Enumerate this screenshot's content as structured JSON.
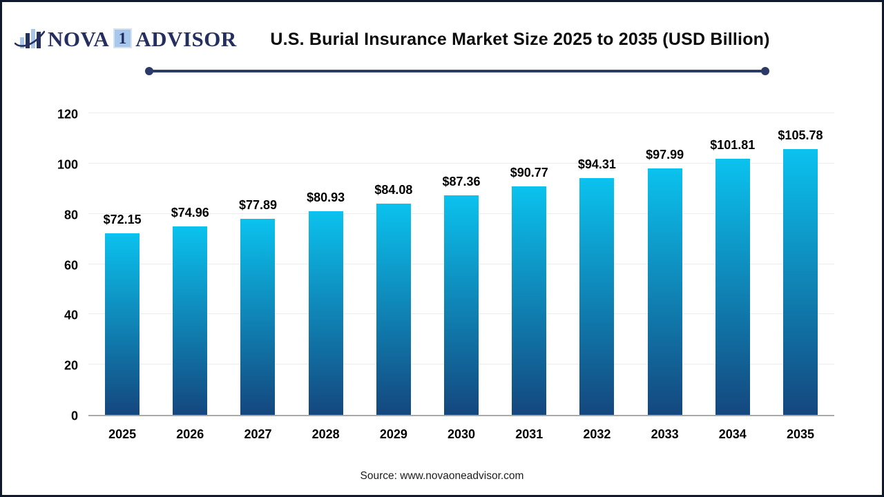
{
  "logo": {
    "icon": "bar-chart-swoosh-icon",
    "part1": "NOVA",
    "one": "1",
    "part2": "ADVISOR",
    "navy": "#242e5f",
    "light_blue": "#a9c7ea"
  },
  "header": {
    "title": "U.S. Burial Insurance Market Size 2025 to 2035 (USD Billion)"
  },
  "chart_data": {
    "type": "bar",
    "title": "U.S. Burial Insurance Market Size 2025 to 2035 (USD Billion)",
    "categories": [
      "2025",
      "2026",
      "2027",
      "2028",
      "2029",
      "2030",
      "2031",
      "2032",
      "2033",
      "2034",
      "2035"
    ],
    "values": [
      72.15,
      74.96,
      77.89,
      80.93,
      84.08,
      87.36,
      90.77,
      94.31,
      97.99,
      101.81,
      105.78
    ],
    "labels": [
      "$72.15",
      "$74.96",
      "$77.89",
      "$80.93",
      "$84.08",
      "$87.36",
      "$90.77",
      "$94.31",
      "$97.99",
      "$101.81",
      "$105.78"
    ],
    "xlabel": "",
    "ylabel": "",
    "ylim": [
      0,
      120
    ],
    "yticks": [
      0,
      20,
      40,
      60,
      80,
      100,
      120
    ],
    "grid": true,
    "legend": false,
    "bar_gradient_top": "#0bc2ee",
    "bar_gradient_bottom": "#14477e",
    "divider_color": "#2b3a67",
    "axis_line_color": "#a9a9a9",
    "gridline_color": "#ececec"
  },
  "footer": {
    "source": "Source: www.novaoneadvisor.com"
  }
}
